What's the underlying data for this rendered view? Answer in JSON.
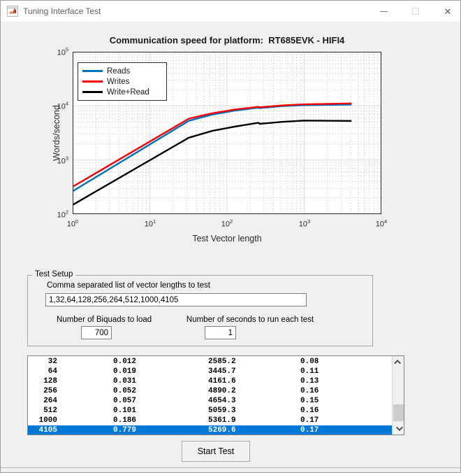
{
  "window": {
    "title": "Tuning Interface Test",
    "icons": {
      "app": "matlab-logo",
      "minimize": "minimize-dash",
      "maximize": "maximize-square",
      "close": "close-x",
      "close_glyph": "✕",
      "scroll_up": "chevron-up",
      "scroll_down": "chevron-down"
    }
  },
  "chart_data": {
    "type": "line",
    "title": "Communication speed for platform:  RT685EVK - HIFI4",
    "xlabel": "Test Vector length",
    "ylabel": "Words/second",
    "xscale": "log",
    "yscale": "log",
    "xlim": [
      1,
      10000
    ],
    "ylim": [
      100,
      100000
    ],
    "x_tick_exponents": [
      0,
      1,
      2,
      3,
      4
    ],
    "y_tick_exponents": [
      2,
      3,
      4,
      5
    ],
    "grid": true,
    "minor_grid": true,
    "legend_position": "northwest",
    "x": [
      1,
      32,
      64,
      128,
      256,
      264,
      512,
      1000,
      4105
    ],
    "series": [
      {
        "name": "Reads",
        "color": "#0072BD",
        "values": [
          265,
          5300,
          6900,
          8200,
          9300,
          9100,
          9900,
          10300,
          10600
        ]
      },
      {
        "name": "Writes",
        "color": "#FF0000",
        "values": [
          320,
          5800,
          7300,
          8600,
          9600,
          9400,
          10200,
          10700,
          11100
        ]
      },
      {
        "name": "Write+Read",
        "color": "#000000",
        "values": [
          148,
          2585.2,
          3445.7,
          4161.6,
          4890.2,
          4654.3,
          5059.3,
          5361.9,
          5269.6
        ]
      }
    ]
  },
  "test_setup": {
    "group_label": "Test Setup",
    "vector_list_label": "Comma separated list of vector lengths to test",
    "vector_list_value": "1,32,64,128,256,264,512,1000,4105",
    "biquads_label": "Number of Biquads to load",
    "biquads_value": "700",
    "seconds_label": "Number of seconds to run each test",
    "seconds_value": "1"
  },
  "results_list": {
    "rows": [
      [
        "32",
        "0.012",
        "2585.2",
        "0.08"
      ],
      [
        "64",
        "0.019",
        "3445.7",
        "0.11"
      ],
      [
        "128",
        "0.031",
        "4161.6",
        "0.13"
      ],
      [
        "256",
        "0.052",
        "4890.2",
        "0.16"
      ],
      [
        "264",
        "0.057",
        "4654.3",
        "0.15"
      ],
      [
        "512",
        "0.101",
        "5059.3",
        "0.16"
      ],
      [
        "1000",
        "0.186",
        "5361.9",
        "0.17"
      ],
      [
        "4105",
        "0.779",
        "5269.6",
        "0.17"
      ]
    ],
    "selected_index": 7,
    "selection_color": "#0078d7"
  },
  "start_button_label": "Start Test"
}
